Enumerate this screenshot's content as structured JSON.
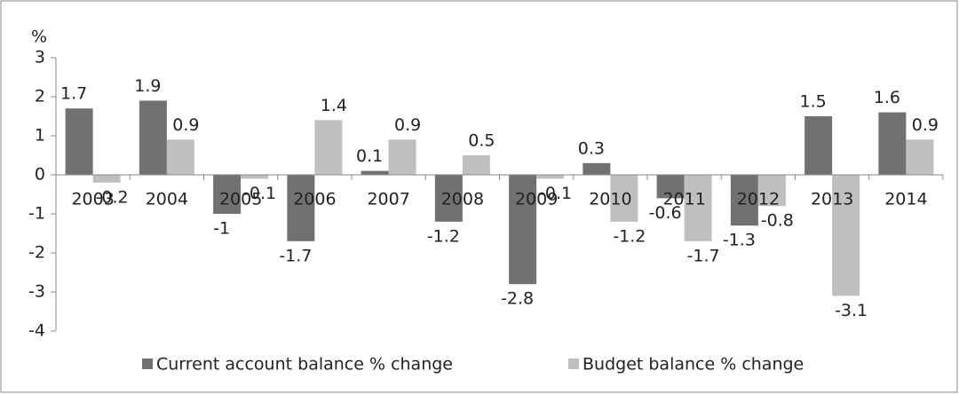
{
  "chart_data": {
    "type": "bar",
    "y_label": "%",
    "categories": [
      "2003",
      "2004",
      "2005",
      "2006",
      "2007",
      "2008",
      "2009",
      "2010",
      "2011",
      "2012",
      "2013",
      "2014"
    ],
    "series": [
      {
        "name": "Current account balance % change",
        "color": "#717171",
        "values": [
          1.7,
          1.9,
          -1,
          -1.7,
          0.1,
          -1.2,
          -2.8,
          0.3,
          -0.6,
          -1.3,
          1.5,
          1.6
        ]
      },
      {
        "name": "Budget balance % change",
        "color": "#bfbfbf",
        "values": [
          -0.2,
          0.9,
          -0.1,
          1.4,
          0.9,
          0.5,
          -0.1,
          -1.2,
          -1.7,
          -0.8,
          -3.1,
          0.9
        ]
      }
    ],
    "ylim": [
      -4,
      3
    ],
    "yticks": [
      -4,
      -3,
      -2,
      -1,
      0,
      1,
      2,
      3
    ],
    "legend": "bottom"
  }
}
